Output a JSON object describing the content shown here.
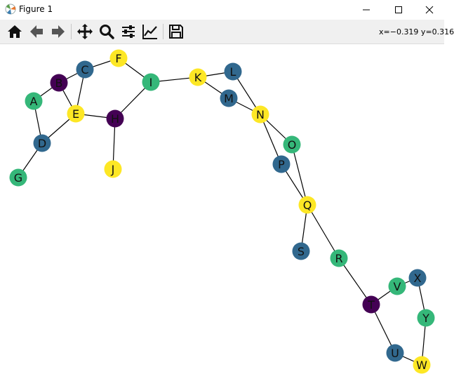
{
  "window": {
    "title": "Figure 1",
    "minimize_icon": "minimize-icon",
    "maximize_icon": "maximize-icon",
    "close_icon": "close-icon"
  },
  "toolbar": {
    "buttons": [
      {
        "name": "home",
        "icon": "home-icon"
      },
      {
        "name": "back",
        "icon": "back-arrow-icon"
      },
      {
        "name": "forward",
        "icon": "forward-arrow-icon"
      },
      {
        "name": "pan",
        "icon": "pan-arrows-icon"
      },
      {
        "name": "zoom",
        "icon": "zoom-magnifier-icon"
      },
      {
        "name": "configure-subplots",
        "icon": "sliders-icon"
      },
      {
        "name": "edit-axis",
        "icon": "line-chart-icon"
      },
      {
        "name": "save",
        "icon": "floppy-disk-icon"
      }
    ],
    "coordinates": "x=−0.319 y=0.316"
  },
  "colors": {
    "purple": "#440154",
    "blue": "#31688e",
    "green": "#35b779",
    "yellow": "#fde725",
    "edge": "#000000"
  },
  "chart_data": {
    "type": "network-graph",
    "nodes": [
      {
        "id": "A",
        "color": "green"
      },
      {
        "id": "B",
        "color": "purple"
      },
      {
        "id": "C",
        "color": "blue"
      },
      {
        "id": "D",
        "color": "blue"
      },
      {
        "id": "E",
        "color": "yellow"
      },
      {
        "id": "F",
        "color": "yellow"
      },
      {
        "id": "G",
        "color": "green"
      },
      {
        "id": "H",
        "color": "purple"
      },
      {
        "id": "I",
        "color": "green"
      },
      {
        "id": "J",
        "color": "yellow"
      },
      {
        "id": "K",
        "color": "yellow"
      },
      {
        "id": "L",
        "color": "blue"
      },
      {
        "id": "M",
        "color": "blue"
      },
      {
        "id": "N",
        "color": "yellow"
      },
      {
        "id": "O",
        "color": "green"
      },
      {
        "id": "P",
        "color": "blue"
      },
      {
        "id": "Q",
        "color": "yellow"
      },
      {
        "id": "R",
        "color": "green"
      },
      {
        "id": "S",
        "color": "blue"
      },
      {
        "id": "T",
        "color": "purple"
      },
      {
        "id": "U",
        "color": "blue"
      },
      {
        "id": "V",
        "color": "green"
      },
      {
        "id": "W",
        "color": "yellow"
      },
      {
        "id": "X",
        "color": "blue"
      },
      {
        "id": "Y",
        "color": "green"
      }
    ],
    "edges": [
      [
        "A",
        "B"
      ],
      [
        "A",
        "D"
      ],
      [
        "B",
        "C"
      ],
      [
        "B",
        "E"
      ],
      [
        "C",
        "E"
      ],
      [
        "C",
        "F"
      ],
      [
        "D",
        "E"
      ],
      [
        "D",
        "G"
      ],
      [
        "E",
        "H"
      ],
      [
        "F",
        "I"
      ],
      [
        "H",
        "I"
      ],
      [
        "H",
        "J"
      ],
      [
        "I",
        "K"
      ],
      [
        "K",
        "L"
      ],
      [
        "K",
        "M"
      ],
      [
        "L",
        "N"
      ],
      [
        "M",
        "N"
      ],
      [
        "N",
        "O"
      ],
      [
        "N",
        "P"
      ],
      [
        "O",
        "Q"
      ],
      [
        "P",
        "Q"
      ],
      [
        "Q",
        "R"
      ],
      [
        "Q",
        "S"
      ],
      [
        "R",
        "T"
      ],
      [
        "T",
        "V"
      ],
      [
        "T",
        "U"
      ],
      [
        "U",
        "W"
      ],
      [
        "V",
        "X"
      ],
      [
        "X",
        "Y"
      ],
      [
        "Y",
        "W"
      ]
    ]
  }
}
